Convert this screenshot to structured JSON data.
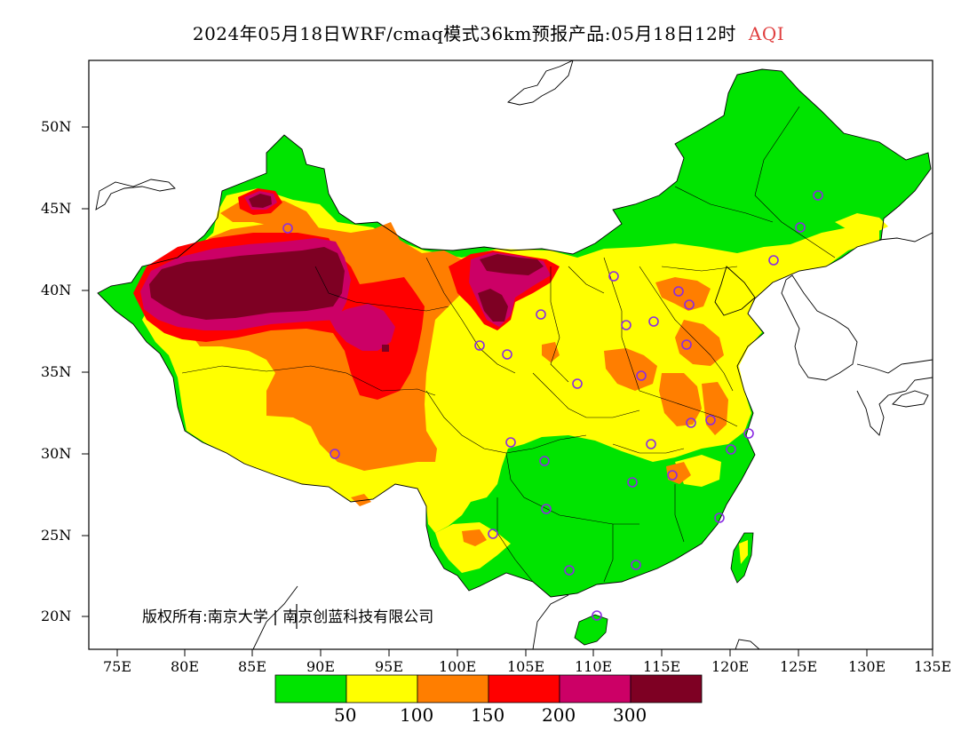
{
  "title": {
    "main": "2024年05月18日WRF/cmaq模式36km预报产品:05月18日12时",
    "variable": "AQI"
  },
  "axes": {
    "lat_labels": [
      "50N",
      "45N",
      "40N",
      "35N",
      "30N",
      "25N",
      "20N"
    ],
    "lon_labels": [
      "75E",
      "80E",
      "85E",
      "90E",
      "95E",
      "100E",
      "105E",
      "110E",
      "115E",
      "120E",
      "125E",
      "130E",
      "135E"
    ]
  },
  "legend": {
    "colors": [
      "#00e400",
      "#ffff00",
      "#ff7e00",
      "#ff0000",
      "#cc0066",
      "#7e0023"
    ],
    "labels": [
      "50",
      "100",
      "150",
      "200",
      "300"
    ]
  },
  "copyright": "版权所有:南京大学 | 南京创蓝科技有限公司",
  "site_marker_color": "#8a2be2"
}
